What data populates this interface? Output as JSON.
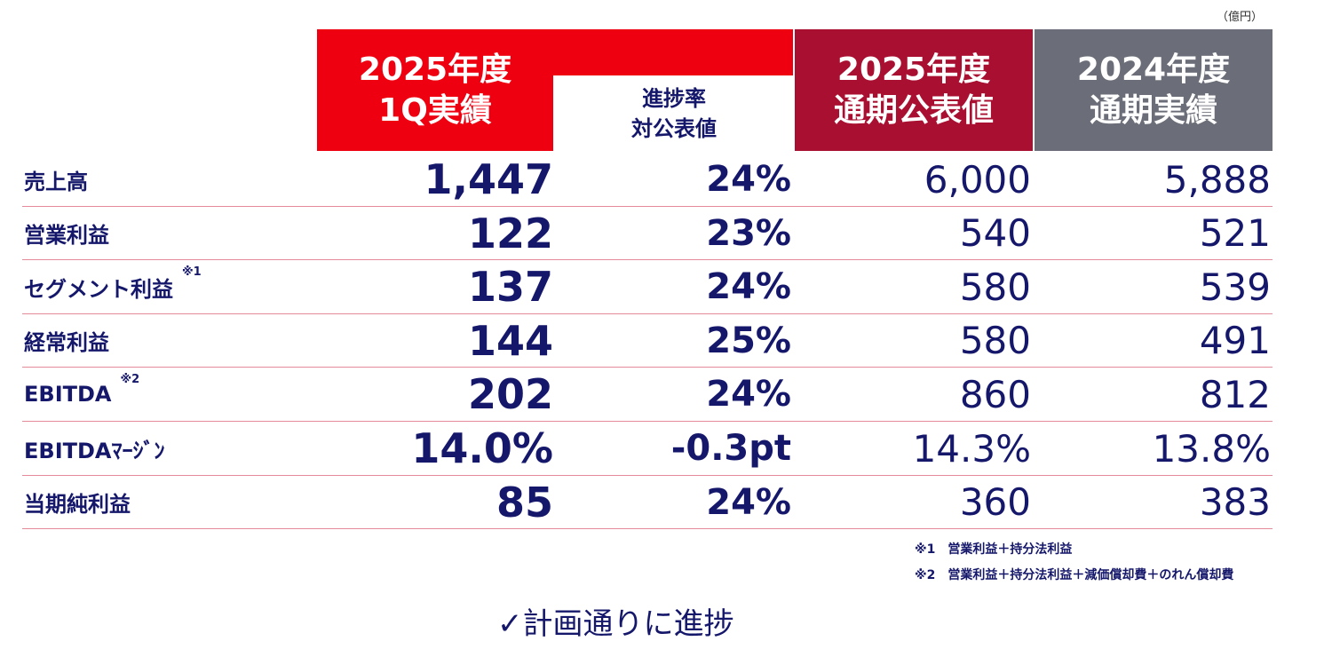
{
  "unit": "（億円）",
  "header": [
    {
      "lines": [
        "2025年度",
        "1Q実績"
      ]
    },
    {
      "lines": [
        "進捗率",
        "対公表値"
      ]
    },
    {
      "lines": [
        "2025年度",
        "通期公表値"
      ]
    },
    {
      "lines": [
        "2024年度",
        "通期実績"
      ]
    }
  ],
  "table": {
    "rows": [
      {
        "label": "売上高",
        "cells": [
          "1,447",
          "24%",
          "6,000",
          "5,888"
        ]
      },
      {
        "label": "営業利益",
        "cells": [
          "122",
          "23%",
          "540",
          "521"
        ]
      },
      {
        "label": "セグメント利益",
        "note": "※1",
        "cells": [
          "137",
          "24%",
          "580",
          "539"
        ]
      },
      {
        "label": "経常利益",
        "cells": [
          "144",
          "25%",
          "580",
          "491"
        ]
      },
      {
        "label": "EBITDA",
        "note": "※2",
        "cells": [
          "202",
          "24%",
          "860",
          "812"
        ]
      },
      {
        "label": "EBITDAﾏｰｼﾞﾝ",
        "cells": [
          "14.0%",
          "-0.3pt",
          "14.3%",
          "13.8%"
        ]
      },
      {
        "label": "当期純利益",
        "cells": [
          "85",
          "24%",
          "360",
          "383"
        ]
      }
    ]
  },
  "footnotes": [
    "※1　営業利益＋持分法利益",
    "※2　営業利益＋持分法利益＋減価償却費＋のれん償却費"
  ],
  "conclusion": "✓計画通りに進捗"
}
